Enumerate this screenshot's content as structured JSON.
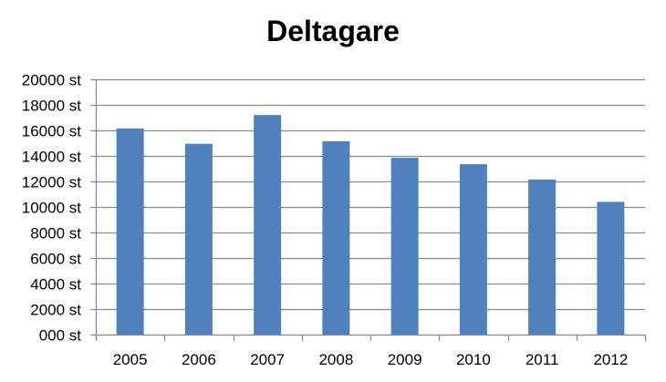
{
  "chart_data": {
    "type": "bar",
    "title": "Deltagare",
    "categories": [
      "2005",
      "2006",
      "2007",
      "2008",
      "2009",
      "2010",
      "2011",
      "2012"
    ],
    "series": [
      {
        "values": [
          16150,
          14950,
          17200,
          15150,
          13850,
          13350,
          12150,
          10400
        ],
        "color": "#4f81bd"
      }
    ],
    "y_tick_values": [
      0,
      2000,
      4000,
      6000,
      8000,
      10000,
      12000,
      14000,
      16000,
      18000,
      20000
    ],
    "y_tick_labels": [
      "000 st",
      "2000 st",
      "4000 st",
      "6000 st",
      "8000 st",
      "10000 st",
      "12000 st",
      "14000 st",
      "16000 st",
      "18000 st",
      "20000 st"
    ],
    "ylim": [
      0,
      20000
    ],
    "xlabel": "",
    "ylabel": "",
    "grid": true,
    "legend": "none"
  }
}
